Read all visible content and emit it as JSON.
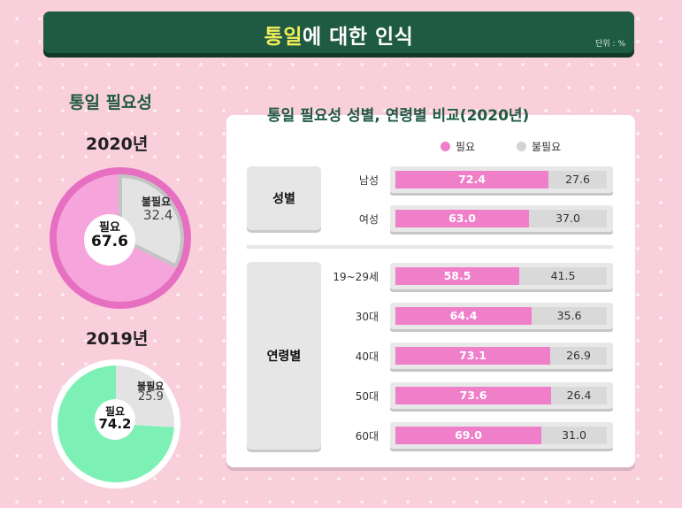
{
  "header": {
    "title_highlight": "통일",
    "title_rest": "에 대한 인식",
    "unit": "단위 : %"
  },
  "left": {
    "title": "통일 필요성",
    "y2020": {
      "year": "2020년",
      "need_label": "필요",
      "need": "67.6",
      "noneed_label": "불필요",
      "noneed": "32.4"
    },
    "y2019": {
      "year": "2019년",
      "need_label": "필요",
      "need": "74.2",
      "noneed_label": "불필요",
      "noneed": "25.9"
    }
  },
  "right": {
    "title": "통일 필요성 성별, 연령별 비교(2020년)",
    "legend_need": "필요",
    "legend_noneed": "불필요",
    "group_gender": "성별",
    "group_age": "연령별"
  },
  "colors": {
    "need_pink": "#f07fca",
    "need_pink_light": "#f6a5dc",
    "need_green": "#7df0b5",
    "noneed_gray": "#e3e3e3",
    "noneed_ring": "#c4c4c4",
    "brand_green": "#1f5a43"
  },
  "chart_data": [
    {
      "type": "pie",
      "title": "2020년",
      "categories": [
        "필요",
        "불필요"
      ],
      "values": [
        67.6,
        32.4
      ]
    },
    {
      "type": "pie",
      "title": "2019년",
      "categories": [
        "필요",
        "불필요"
      ],
      "values": [
        74.2,
        25.9
      ]
    },
    {
      "type": "bar",
      "title": "통일 필요성 성별, 연령별 비교(2020년)",
      "orientation": "horizontal",
      "stacked": true,
      "categories": [
        "남성",
        "여성",
        "19~29세",
        "30대",
        "40대",
        "50대",
        "60대"
      ],
      "series": [
        {
          "name": "필요",
          "values": [
            72.4,
            63.0,
            58.5,
            64.4,
            73.1,
            73.6,
            69.0
          ]
        },
        {
          "name": "불필요",
          "values": [
            27.6,
            37.0,
            41.5,
            35.6,
            26.9,
            26.4,
            31.0
          ]
        }
      ],
      "labels_need": [
        "72.4",
        "63.0",
        "58.5",
        "64.4",
        "73.1",
        "73.6",
        "69.0"
      ],
      "labels_noneed": [
        "27.6",
        "37.0",
        "41.5",
        "35.6",
        "26.9",
        "26.4",
        "31.0"
      ],
      "legend": "top"
    }
  ]
}
